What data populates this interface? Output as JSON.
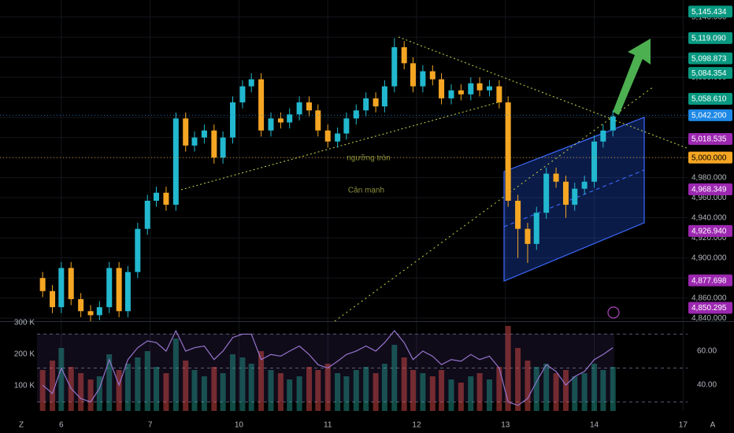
{
  "chart_data": {
    "type": "candlestick",
    "x": [
      -0.21,
      -0.1,
      0.0,
      0.11,
      0.22,
      0.33,
      0.43,
      0.54,
      0.65,
      0.75,
      0.86,
      0.97,
      1.07,
      1.18,
      1.29,
      1.4,
      1.5,
      1.61,
      1.72,
      1.82,
      1.93,
      2.04,
      2.14,
      2.25,
      2.36,
      2.47,
      2.57,
      2.68,
      2.79,
      2.89,
      3.0,
      3.11,
      3.21,
      3.32,
      3.43,
      3.54,
      3.64,
      3.75,
      3.86,
      3.96,
      4.07,
      4.18,
      4.28,
      4.39,
      4.5,
      4.61,
      4.71,
      4.82,
      4.93,
      5.03,
      5.14,
      5.25,
      5.35,
      5.46,
      5.57,
      5.68,
      5.78,
      5.89,
      6.0,
      6.1,
      6.21
    ],
    "open": [
      4880,
      4867,
      4851,
      4890,
      4859,
      4847,
      4843,
      4851,
      4890,
      4847,
      4886,
      4929,
      4957,
      4965,
      4953,
      5039,
      5012,
      5020,
      5027,
      5000,
      5020,
      5055,
      5071,
      5078,
      5027,
      5039,
      5035,
      5043,
      5055,
      5047,
      5027,
      5016,
      5024,
      5039,
      5047,
      5059,
      5051,
      5071,
      5110,
      5094,
      5071,
      5086,
      5078,
      5059,
      5067,
      5063,
      5074,
      5067,
      5071,
      5055,
      4957,
      4929,
      4914,
      4945,
      4984,
      4976,
      4953,
      4969,
      4976,
      5016,
      5027
    ],
    "high": [
      4886,
      4873,
      4896,
      4896,
      4865,
      4853,
      4857,
      4896,
      4896,
      4892,
      4935,
      4963,
      4971,
      4971,
      5045,
      5045,
      5026,
      5033,
      5033,
      5026,
      5061,
      5077,
      5084,
      5084,
      5045,
      5045,
      5049,
      5061,
      5061,
      5053,
      5033,
      5030,
      5045,
      5053,
      5065,
      5065,
      5077,
      5119,
      5116,
      5100,
      5092,
      5092,
      5084,
      5073,
      5073,
      5080,
      5080,
      5077,
      5077,
      5061,
      4963,
      4935,
      4951,
      4990,
      4990,
      4982,
      4975,
      4982,
      5022,
      5033,
      5047
    ],
    "low": [
      4861,
      4845,
      4845,
      4853,
      4841,
      4837,
      4838,
      4845,
      4841,
      4841,
      4880,
      4923,
      4951,
      4947,
      4947,
      5006,
      5006,
      5014,
      4994,
      4994,
      5014,
      5049,
      5065,
      5021,
      5021,
      5029,
      5029,
      5037,
      5041,
      5021,
      5010,
      5010,
      5018,
      5033,
      5041,
      5045,
      5045,
      5065,
      5088,
      5065,
      5065,
      5072,
      5053,
      5053,
      5057,
      5057,
      5061,
      5061,
      5049,
      4951,
      4900,
      4895,
      4908,
      4939,
      4970,
      4940,
      4947,
      4963,
      4970,
      5010,
      5021
    ],
    "close": [
      4867,
      4851,
      4890,
      4859,
      4847,
      4843,
      4851,
      4890,
      4847,
      4886,
      4929,
      4957,
      4965,
      4953,
      5039,
      5012,
      5020,
      5027,
      5000,
      5020,
      5055,
      5071,
      5078,
      5027,
      5039,
      5035,
      5043,
      5055,
      5047,
      5027,
      5016,
      5024,
      5039,
      5047,
      5059,
      5051,
      5071,
      5110,
      5094,
      5071,
      5086,
      5078,
      5059,
      5067,
      5063,
      5074,
      5067,
      5071,
      5055,
      4957,
      4929,
      4914,
      4945,
      4984,
      4976,
      4953,
      4969,
      4976,
      5016,
      5027,
      5041
    ],
    "up_color": "#22b8cf",
    "down_color": "#f5a623",
    "xlim": [
      -0.69,
      7.05
    ],
    "xticks": [
      {
        "value": 0,
        "label": "6"
      },
      {
        "value": 1,
        "label": "7"
      },
      {
        "value": 2,
        "label": "10"
      },
      {
        "value": 3,
        "label": "11"
      },
      {
        "value": 4,
        "label": "12"
      },
      {
        "value": 5,
        "label": "13"
      },
      {
        "value": 6,
        "label": "14"
      },
      {
        "value": 7,
        "label": "17"
      }
    ],
    "ylim": [
      4837,
      5157
    ],
    "yticks": [
      {
        "value": 4840,
        "label": "4,840.000"
      },
      {
        "value": 4860,
        "label": "4,860.000"
      },
      {
        "value": 4880,
        "label": "4,880.000"
      },
      {
        "value": 4900,
        "label": "4,900.000"
      },
      {
        "value": 4920,
        "label": "4,920.000"
      },
      {
        "value": 4940,
        "label": "4,940.000"
      },
      {
        "value": 4960,
        "label": "4,960.000"
      },
      {
        "value": 4980,
        "label": "4,980.000"
      },
      {
        "value": 5000,
        "label": "5,000.000"
      },
      {
        "value": 5020,
        "label": "5,020.000"
      },
      {
        "value": 5040,
        "label": "5,040.000"
      },
      {
        "value": 5060,
        "label": "5,060.000"
      },
      {
        "value": 5080,
        "label": "5,080.000"
      },
      {
        "value": 5100,
        "label": "5,100.000"
      },
      {
        "value": 5120,
        "label": "5,120.000"
      },
      {
        "value": 5140,
        "label": "5,140.000"
      }
    ],
    "grid": true,
    "price_labels": [
      {
        "value": 5145.434,
        "label": "5,145.434",
        "color": "#089981"
      },
      {
        "value": 5119.09,
        "label": "5,119.090",
        "color": "#089981"
      },
      {
        "value": 5098.873,
        "label": "5,098.873",
        "color": "#089981"
      },
      {
        "value": 5084.354,
        "label": "5,084.354",
        "color": "#089981"
      },
      {
        "value": 5058.61,
        "label": "5,058.610",
        "color": "#089981"
      },
      {
        "value": 5042.2,
        "label": "5,042.200",
        "color": "#1e88e5",
        "line": true
      },
      {
        "value": 5018.535,
        "label": "5,018.535",
        "color": "#9c27b0"
      },
      {
        "value": 5000.0,
        "label": "5,000.000",
        "color": "#f5a623",
        "line": true
      },
      {
        "value": 4968.349,
        "label": "4,968.349",
        "color": "#9c27b0"
      },
      {
        "value": 4926.94,
        "label": "4,926.940",
        "color": "#9c27b0"
      },
      {
        "value": 4877.698,
        "label": "4,877.698",
        "color": "#9c27b0"
      },
      {
        "value": 4850.295,
        "label": "4,850.295",
        "color": "#9c27b0"
      }
    ],
    "annotations": [
      "ngưỡng tròn",
      "Cản mạnh"
    ],
    "volume": [
      150000,
      180000,
      220000,
      160000,
      140000,
      120000,
      130000,
      200000,
      150000,
      170000,
      190000,
      210000,
      160000,
      140000,
      250000,
      180000,
      150000,
      130000,
      160000,
      140000,
      200000,
      190000,
      170000,
      210000,
      150000,
      140000,
      120000,
      130000,
      160000,
      150000,
      170000,
      140000,
      130000,
      150000,
      160000,
      140000,
      170000,
      230000,
      190000,
      150000,
      140000,
      130000,
      150000,
      120000,
      110000,
      130000,
      140000,
      120000,
      160000,
      290000,
      220000,
      180000,
      160000,
      170000,
      140000,
      150000,
      130000,
      140000,
      170000,
      150000,
      160000
    ],
    "volume_lim": [
      20000,
      300000
    ],
    "volume_ticks": [
      {
        "value": 300000,
        "label": "300 K"
      },
      {
        "value": 200000,
        "label": "200 K"
      },
      {
        "value": 100000,
        "label": "100 K"
      }
    ],
    "rsi": [
      40,
      35,
      50,
      38,
      32,
      30,
      38,
      55,
      40,
      55,
      62,
      66,
      65,
      60,
      72,
      60,
      62,
      63,
      55,
      60,
      68,
      70,
      70,
      55,
      58,
      57,
      60,
      63,
      58,
      52,
      50,
      54,
      58,
      60,
      63,
      60,
      65,
      72,
      65,
      55,
      60,
      57,
      52,
      55,
      54,
      58,
      55,
      57,
      50,
      30,
      28,
      32,
      42,
      52,
      48,
      40,
      45,
      48,
      55,
      58,
      62
    ],
    "rsi_color": "#9575cd",
    "rsi_lim": [
      24.7,
      76.7
    ],
    "rsi_ticks": [
      {
        "value": 60,
        "label": "60.00"
      },
      {
        "value": 40,
        "label": "40.00"
      }
    ],
    "rsi_bands": [
      30,
      50,
      70
    ],
    "buttons": [
      "Z",
      "A"
    ]
  }
}
